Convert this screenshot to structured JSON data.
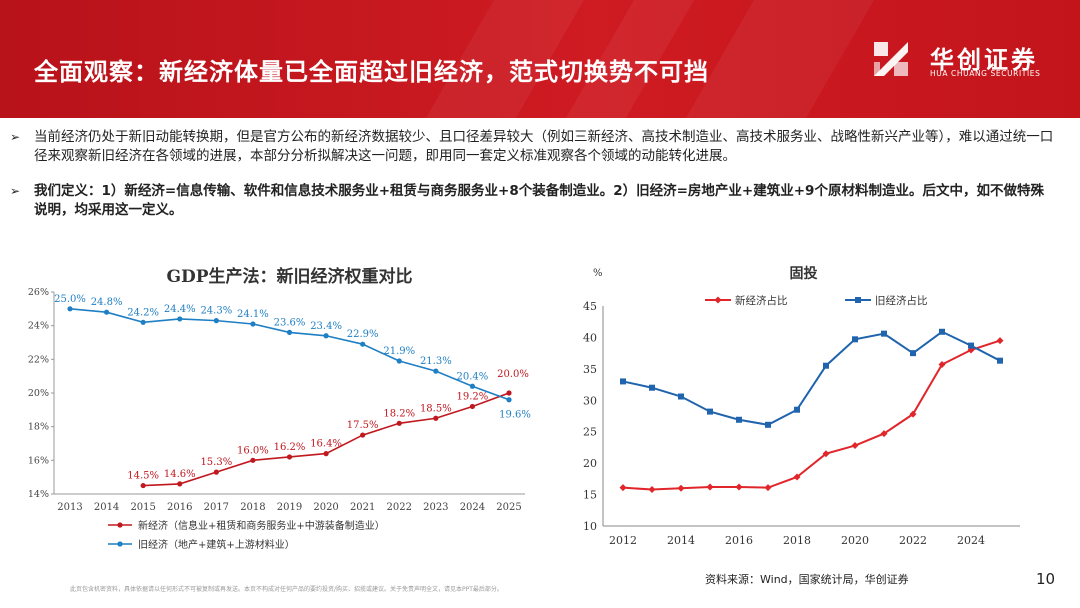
{
  "header": {
    "title": "全面观察：新经济体量已全面超过旧经济，范式切换势不可挡",
    "logo_cn": "华创证券",
    "logo_en": "HUA CHUANG SECURITIES",
    "bg_color": "#c8161d"
  },
  "bullets": [
    {
      "mark": "➢",
      "text": "当前经济仍处于新旧动能转换期，但是官方公布的新经济数据较少、且口径差异较大（例如三新经济、高技术制造业、高技术服务业、战略性新兴产业等），难以通过统一口径来观察新旧经济在各领域的进展，本部分分析拟解决这一问题，即用同一套定义标准观察各个领域的动能转化进展。"
    },
    {
      "mark": "➢",
      "text": "我们定义：1）新经济=信息传输、软件和信息技术服务业+租赁与商务服务业+8个装备制造业。2）旧经济=房地产业+建筑业+9个原材料制造业。后文中，如不做特殊说明，均采用这一定义。"
    }
  ],
  "chart_data": [
    {
      "type": "line",
      "title": "GDP生产法：新旧经济权重对比",
      "x": [
        2013,
        2014,
        2015,
        2016,
        2017,
        2018,
        2019,
        2020,
        2021,
        2022,
        2023,
        2024,
        2025
      ],
      "x_tick_labels": [
        "2013",
        "2014",
        "2015",
        "2016",
        "2017",
        "2018",
        "2019",
        "2020",
        "2021",
        "2022",
        "2023",
        "2024",
        "2025"
      ],
      "ylim": [
        14,
        26
      ],
      "y_ticks": [
        14,
        16,
        18,
        20,
        22,
        24,
        26
      ],
      "y_tick_labels": [
        "14%",
        "16%",
        "18%",
        "20%",
        "22%",
        "24%",
        "26%"
      ],
      "series": [
        {
          "name": "新经济（信息业+租赁和商务服务业+中游装备制造业）",
          "color": "#c0181f",
          "marker": "circle",
          "values": [
            null,
            null,
            14.5,
            14.6,
            15.3,
            16.0,
            16.2,
            16.4,
            17.5,
            18.2,
            18.5,
            19.2,
            20.0
          ],
          "labels": [
            null,
            null,
            "14.5%",
            "14.6%",
            "15.3%",
            "16.0%",
            "16.2%",
            "16.4%",
            "17.5%",
            "18.2%",
            "18.5%",
            "19.2%",
            "20.0%"
          ]
        },
        {
          "name": "旧经济（地产+建筑+上游材料业）",
          "color": "#1f7fc4",
          "marker": "circle",
          "values": [
            25.0,
            24.8,
            24.2,
            24.4,
            24.3,
            24.1,
            23.6,
            23.4,
            22.9,
            21.9,
            21.3,
            20.4,
            19.6
          ],
          "labels": [
            "25.0%",
            "24.8%",
            "24.2%",
            "24.4%",
            "24.3%",
            "24.1%",
            "23.6%",
            "23.4%",
            "22.9%",
            "21.9%",
            "21.3%",
            "20.4%",
            "19.6%"
          ]
        }
      ],
      "legend_position": "bottom-left",
      "grid": false
    },
    {
      "type": "line",
      "title": "固投",
      "y_unit": "%",
      "x": [
        2012,
        2013,
        2014,
        2015,
        2016,
        2017,
        2018,
        2019,
        2020,
        2021,
        2022,
        2023,
        2024,
        2025
      ],
      "x_ticks": [
        2012,
        2014,
        2016,
        2018,
        2020,
        2022,
        2024
      ],
      "x_tick_labels": [
        "2012",
        "2014",
        "2016",
        "2018",
        "2020",
        "2022",
        "2024"
      ],
      "ylim": [
        10,
        45
      ],
      "y_ticks": [
        10,
        15,
        20,
        25,
        30,
        35,
        40,
        45
      ],
      "y_tick_labels": [
        "10",
        "15",
        "20",
        "25",
        "30",
        "35",
        "40",
        "45"
      ],
      "series": [
        {
          "name": "新经济占比",
          "color": "#e0262b",
          "marker": "diamond",
          "values": [
            16.1,
            15.8,
            16.0,
            16.2,
            16.2,
            16.1,
            17.8,
            21.5,
            22.8,
            24.7,
            27.8,
            35.7,
            38.0,
            39.5
          ]
        },
        {
          "name": "旧经济占比",
          "color": "#1f64ad",
          "marker": "square",
          "values": [
            33.0,
            32.0,
            30.6,
            28.2,
            26.9,
            26.1,
            28.5,
            35.5,
            39.7,
            40.6,
            37.5,
            40.9,
            38.7,
            36.3
          ]
        }
      ],
      "legend_position": "top",
      "grid": false
    }
  ],
  "footer": {
    "disclaimer": "此页包含机密资料，具体依据请以任何形式不可被复制或再发送。本页不构成对任何产品的要约投资/购买、招揽或建议。关于免责声明全文，请见本PPT最后部分。",
    "source": "资料来源：Wind，国家统计局，华创证券",
    "page_number": "10"
  }
}
